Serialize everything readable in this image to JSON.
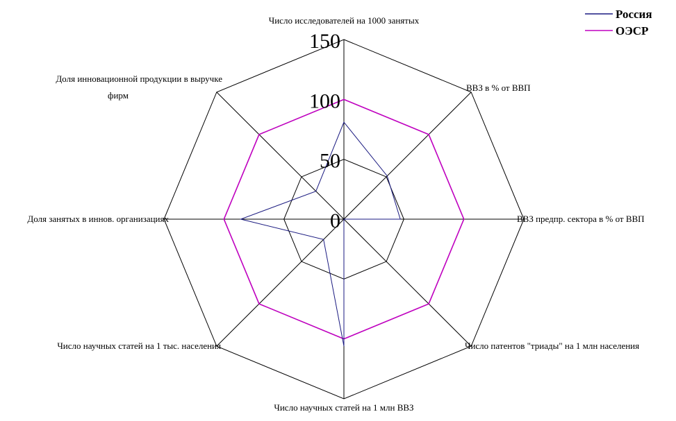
{
  "chart_data": {
    "type": "radar",
    "axes": [
      "Число исследователей на 1000 занятых",
      "ВВЗ в % от ВВП",
      "ВВЗ предпр. сектора в % от ВВП",
      "Число патентов \"триады\" на 1 млн населения",
      "Число научных статей на 1 млн ВВЗ",
      "Число научных статей на 1 тыс. населения",
      "Доля занятых в иннов. организациях",
      "Доля инновационной продукции в выручке фирм"
    ],
    "rlim": [
      0,
      150
    ],
    "ticks": [
      "0",
      "50",
      "100",
      "150"
    ],
    "tick_values": [
      0,
      50,
      100,
      150
    ],
    "series": [
      {
        "name": "Россия",
        "color": "#1a1a80",
        "values": [
          81,
          51,
          47,
          0,
          106,
          24,
          86,
          33
        ]
      },
      {
        "name": "ОЭСР",
        "color": "#c000c0",
        "values": [
          100,
          100,
          100,
          100,
          100,
          100,
          100,
          100
        ]
      }
    ],
    "legend": "top-right",
    "grid": true
  }
}
